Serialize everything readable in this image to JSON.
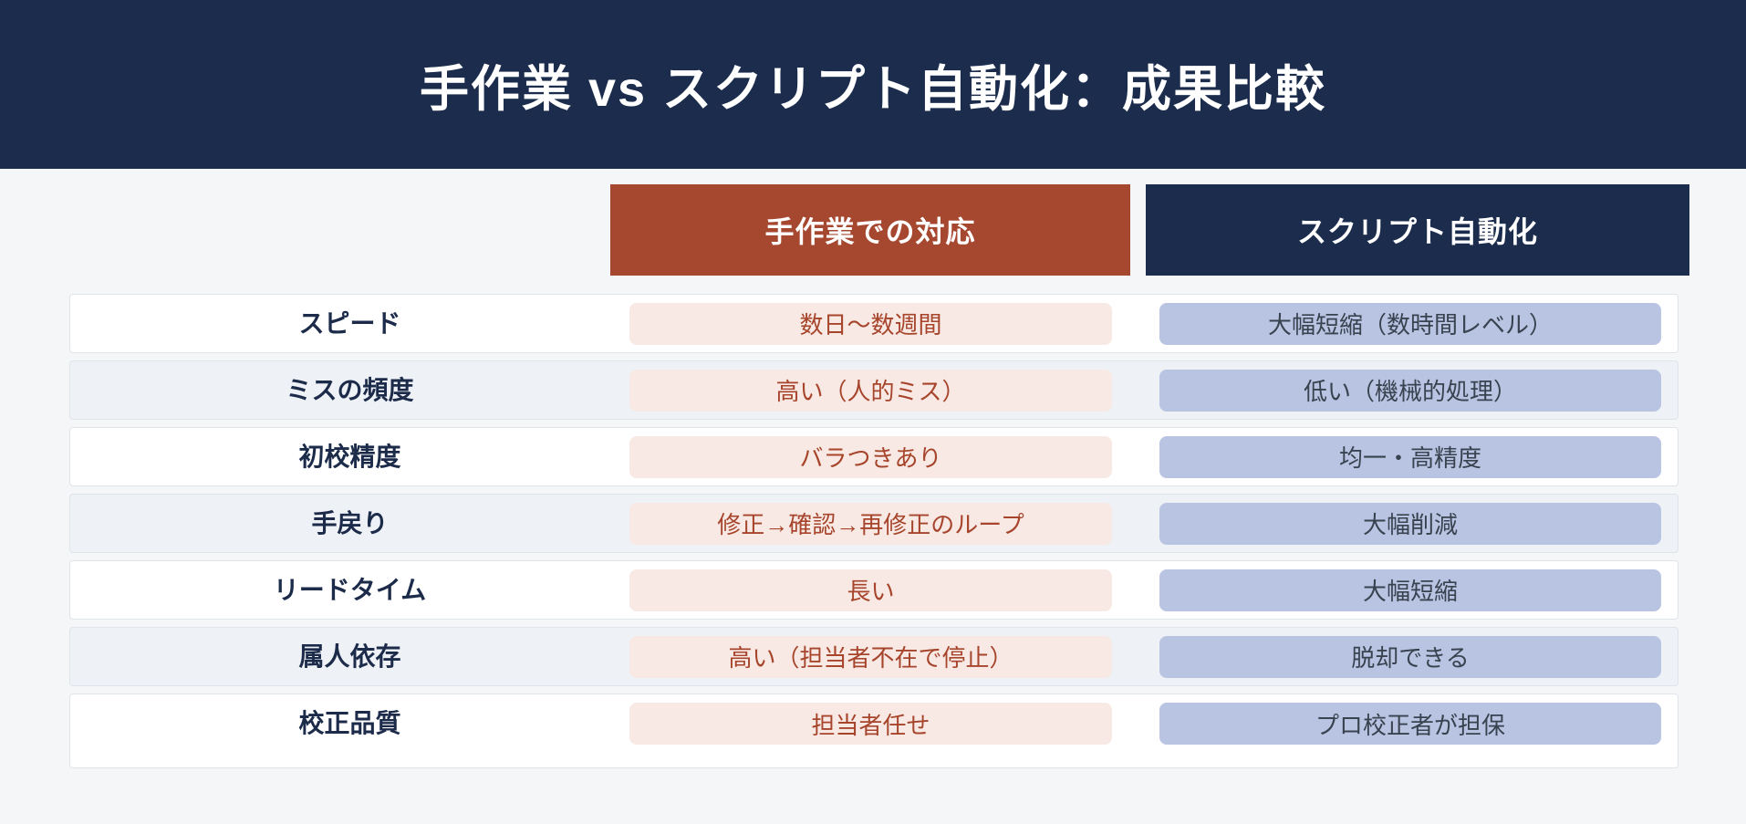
{
  "header": {
    "title": "手作業 vs スクリプト自動化：成果比較"
  },
  "columns": {
    "manual": {
      "label": "手作業での対応"
    },
    "script": {
      "label": "スクリプト自動化"
    }
  },
  "rows": [
    {
      "label": "スピード",
      "manual": "数日〜数週間",
      "script": "大幅短縮（数時間レベル）"
    },
    {
      "label": "ミスの頻度",
      "manual": "高い（人的ミス）",
      "script": "低い（機械的処理）"
    },
    {
      "label": "初校精度",
      "manual": "バラつきあり",
      "script": "均一・高精度"
    },
    {
      "label": "手戻り",
      "manual": "修正→確認→再修正のループ",
      "script": "大幅削減"
    },
    {
      "label": "リードタイム",
      "manual": "長い",
      "script": "大幅短縮"
    },
    {
      "label": "属人依存",
      "manual": "高い（担当者不在で停止）",
      "script": "脱却できる"
    },
    {
      "label": "校正品質",
      "manual": "担当者任せ",
      "script": "プロ校正者が担保"
    }
  ],
  "colors": {
    "banner_bg": "#1b2c4d",
    "manual_header_bg": "#a6472f",
    "script_header_bg": "#1b2c4d",
    "manual_pill_bg": "#f8e9e4",
    "manual_pill_text": "#a7452c",
    "script_pill_bg": "#b9c4e3",
    "script_pill_text": "#39424f",
    "row_label_text": "#1c2b4a",
    "row_alt_bg": "#eef1f6",
    "page_bg": "#f4f6f8"
  },
  "chart_data": {
    "type": "table",
    "title": "手作業 vs スクリプト自動化：成果比較",
    "columns": [
      "",
      "手作業での対応",
      "スクリプト自動化"
    ],
    "rows": [
      [
        "スピード",
        "数日〜数週間",
        "大幅短縮（数時間レベル）"
      ],
      [
        "ミスの頻度",
        "高い（人的ミス）",
        "低い（機械的処理）"
      ],
      [
        "初校精度",
        "バラつきあり",
        "均一・高精度"
      ],
      [
        "手戻り",
        "修正→確認→再修正のループ",
        "大幅削減"
      ],
      [
        "リードタイム",
        "長い",
        "大幅短縮"
      ],
      [
        "属人依存",
        "高い（担当者不在で停止）",
        "脱却できる"
      ],
      [
        "校正品質",
        "担当者任せ",
        "プロ校正者が担保"
      ]
    ],
    "layout_hints": {
      "legend_position": "top",
      "grid": false,
      "row_striping": true
    }
  }
}
